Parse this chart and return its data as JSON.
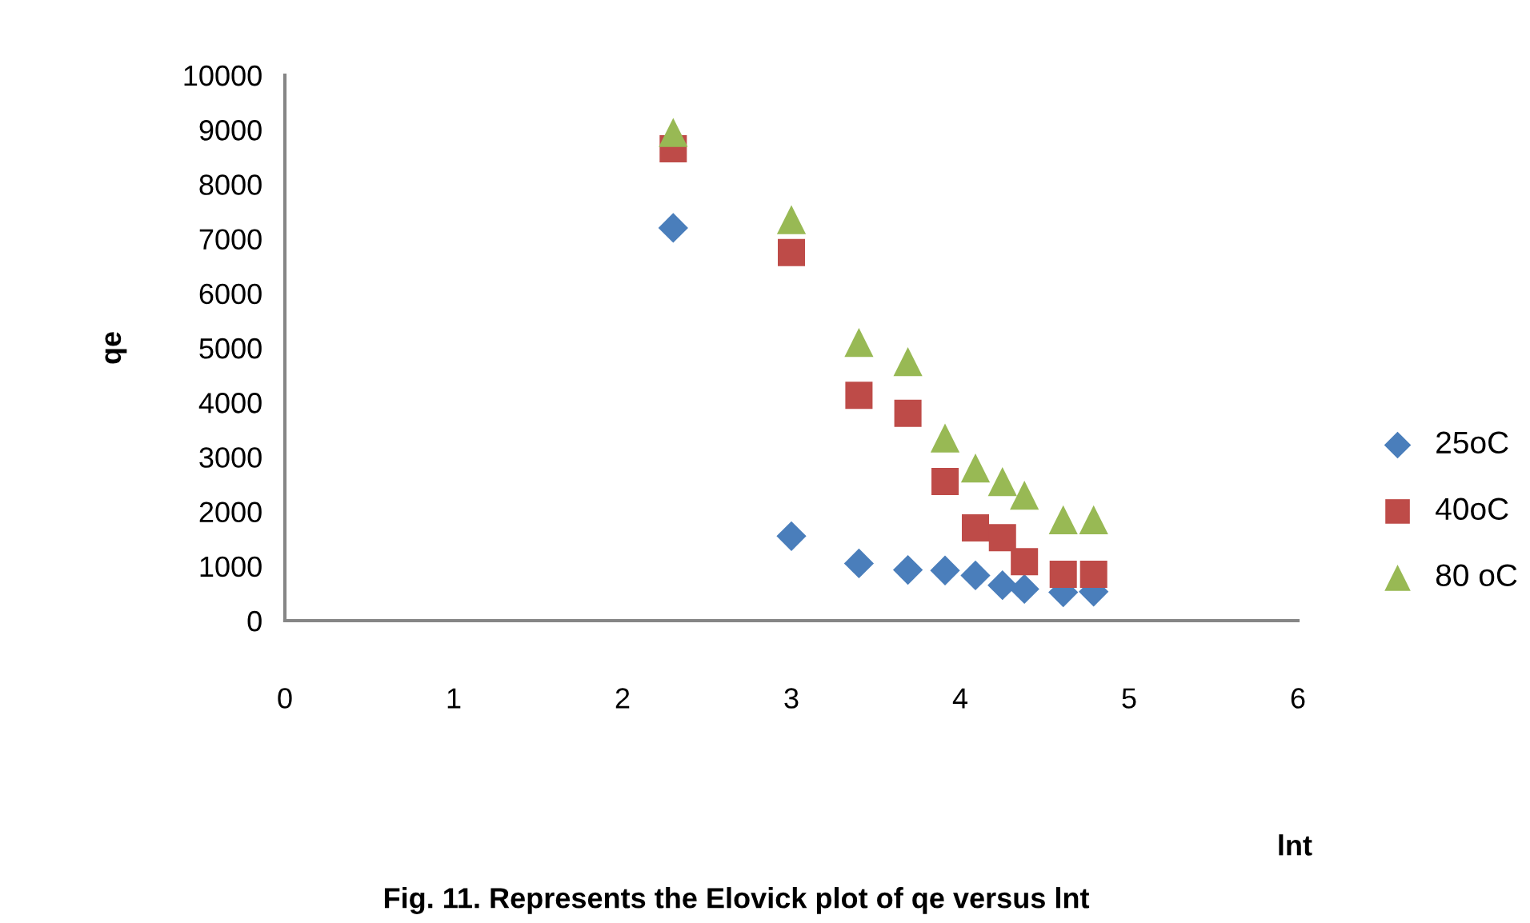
{
  "chart_data": {
    "type": "scatter",
    "xlabel": "lnt",
    "ylabel": "qe",
    "annotations": [
      "Fig. 11. Represents the Elovick plot of qe versus lnt"
    ],
    "x": [
      2.3,
      3.0,
      3.4,
      3.69,
      3.91,
      4.09,
      4.25,
      4.38,
      4.61,
      4.79
    ],
    "series": [
      {
        "name": "25oC",
        "color": "#4a7ebb",
        "marker": "diamond",
        "values": [
          7200,
          1550,
          1050,
          930,
          920,
          830,
          650,
          580,
          520,
          530
        ]
      },
      {
        "name": "40oC",
        "color": "#be4b48",
        "marker": "square",
        "values": [
          8650,
          6750,
          4130,
          3800,
          2550,
          1700,
          1520,
          1080,
          850,
          850
        ]
      },
      {
        "name": "80 oC",
        "color": "#98b954",
        "marker": "triangle",
        "values": [
          8950,
          7350,
          5100,
          4750,
          3350,
          2800,
          2550,
          2300,
          1850,
          1850
        ]
      }
    ],
    "xlim": [
      0,
      6
    ],
    "xticks": [
      0,
      1,
      2,
      3,
      4,
      5,
      6
    ],
    "ylim": [
      0,
      10000
    ],
    "yticks": [
      0,
      1000,
      2000,
      3000,
      4000,
      5000,
      6000,
      7000,
      8000,
      9000,
      10000
    ],
    "grid": false,
    "legend": "right"
  }
}
